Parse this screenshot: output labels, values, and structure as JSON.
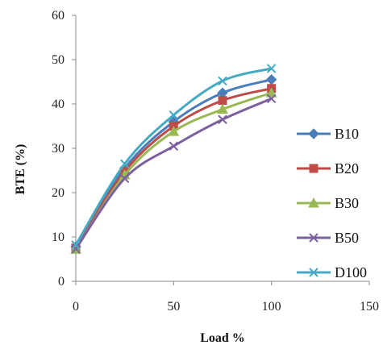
{
  "chart_data": {
    "type": "line",
    "xlabel": "Load %",
    "ylabel": "BTE (%)",
    "xlim": [
      0,
      150
    ],
    "ylim": [
      0,
      60
    ],
    "xticks": [
      0,
      50,
      100,
      150
    ],
    "yticks": [
      0,
      10,
      20,
      30,
      40,
      50,
      60
    ],
    "grid": false,
    "legend_position": "right",
    "x": [
      0,
      25,
      50,
      75,
      100
    ],
    "series": [
      {
        "name": "B10",
        "values": [
          7.8,
          25.5,
          36.0,
          42.5,
          45.5
        ],
        "color": "#4a7ebb",
        "marker": "diamond"
      },
      {
        "name": "B20",
        "values": [
          7.5,
          24.8,
          35.0,
          40.8,
          43.5
        ],
        "color": "#be4b48",
        "marker": "square"
      },
      {
        "name": "B30",
        "values": [
          7.2,
          24.0,
          33.8,
          38.8,
          42.5
        ],
        "color": "#98b954",
        "marker": "triangle"
      },
      {
        "name": "B50",
        "values": [
          7.3,
          23.2,
          30.5,
          36.5,
          41.2
        ],
        "color": "#7d60a0",
        "marker": "x"
      },
      {
        "name": "D100",
        "values": [
          8.2,
          26.5,
          37.5,
          45.2,
          48.0
        ],
        "color": "#46aac5",
        "marker": "x"
      }
    ]
  }
}
